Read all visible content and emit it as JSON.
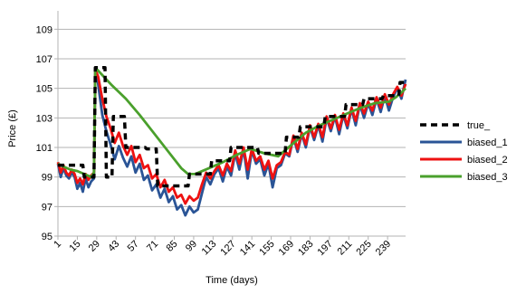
{
  "chart_data": {
    "type": "line",
    "xlabel": "Time (days)",
    "ylabel": "Price (£)",
    "ylim": [
      95,
      110
    ],
    "y_ticks": [
      95,
      97,
      99,
      101,
      103,
      105,
      107,
      109
    ],
    "x_range": [
      1,
      252
    ],
    "x_ticks": [
      1,
      15,
      29,
      43,
      57,
      71,
      85,
      99,
      113,
      127,
      141,
      155,
      169,
      183,
      197,
      211,
      225,
      239
    ],
    "grid": "horizontal",
    "legend": "right",
    "series": [
      {
        "name": "true_",
        "color": "#000000",
        "style": "dashed",
        "x": [
          1,
          19,
          20,
          27,
          28,
          35,
          36,
          40,
          41,
          49,
          50,
          64,
          65,
          72,
          73,
          95,
          96,
          111,
          112,
          125,
          126,
          145,
          146,
          165,
          166,
          175,
          176,
          193,
          194,
          208,
          209,
          221,
          222,
          235,
          236,
          247,
          248,
          252
        ],
        "values": [
          99.8,
          99.8,
          99.0,
          99.0,
          106.4,
          106.4,
          99.0,
          99.0,
          103.1,
          103.1,
          101.0,
          101.0,
          100.9,
          100.9,
          98.4,
          98.4,
          99.2,
          99.2,
          100.1,
          100.1,
          101.0,
          101.0,
          100.6,
          100.6,
          101.7,
          101.7,
          102.4,
          102.4,
          103.1,
          103.1,
          103.9,
          103.9,
          104.3,
          104.3,
          104.5,
          104.5,
          105.4,
          105.4
        ]
      },
      {
        "name": "biased_1",
        "color": "#2a5496",
        "style": "solid",
        "x": [
          1,
          3,
          5,
          7,
          9,
          11,
          13,
          15,
          17,
          19,
          21,
          23,
          25,
          27,
          28,
          30,
          33,
          36,
          39,
          42,
          45,
          48,
          51,
          54,
          57,
          60,
          63,
          66,
          69,
          72,
          75,
          78,
          81,
          84,
          87,
          90,
          93,
          96,
          99,
          102,
          105,
          108,
          111,
          114,
          117,
          120,
          123,
          126,
          129,
          132,
          135,
          138,
          141,
          144,
          147,
          150,
          153,
          156,
          159,
          162,
          165,
          168,
          171,
          174,
          177,
          180,
          183,
          186,
          189,
          192,
          195,
          198,
          201,
          204,
          207,
          210,
          213,
          216,
          219,
          222,
          225,
          228,
          231,
          234,
          237,
          240,
          243,
          246,
          249,
          252
        ],
        "values": [
          99.9,
          99.0,
          99.6,
          99.1,
          98.9,
          99.3,
          99.0,
          98.2,
          98.6,
          98.0,
          98.9,
          98.3,
          98.7,
          98.9,
          106.4,
          105.3,
          103.2,
          102.1,
          101.2,
          100.2,
          101.1,
          100.3,
          99.7,
          100.4,
          99.3,
          99.9,
          98.8,
          99.1,
          98.1,
          98.5,
          97.6,
          98.2,
          97.3,
          97.7,
          96.8,
          97.1,
          96.4,
          97.0,
          96.6,
          96.8,
          97.9,
          99.0,
          98.5,
          99.2,
          99.6,
          98.7,
          99.7,
          99.1,
          100.6,
          99.5,
          100.9,
          98.9,
          100.8,
          99.9,
          100.2,
          99.1,
          99.9,
          98.3,
          99.6,
          99.8,
          100.6,
          100.4,
          101.7,
          100.7,
          101.9,
          101.0,
          102.4,
          101.5,
          102.5,
          101.4,
          103.0,
          102.1,
          103.1,
          101.9,
          103.2,
          102.3,
          103.6,
          102.5,
          103.9,
          103.0,
          104.0,
          103.2,
          104.3,
          103.4,
          104.5,
          103.5,
          104.4,
          105.0,
          104.3,
          105.6
        ]
      },
      {
        "name": "biased_2",
        "color": "#ee1111",
        "style": "solid",
        "x": [
          1,
          3,
          5,
          7,
          9,
          11,
          13,
          15,
          17,
          19,
          21,
          23,
          25,
          27,
          28,
          30,
          33,
          36,
          39,
          42,
          45,
          48,
          51,
          54,
          57,
          60,
          63,
          66,
          69,
          72,
          75,
          78,
          81,
          84,
          87,
          90,
          93,
          96,
          99,
          102,
          105,
          108,
          111,
          114,
          117,
          120,
          123,
          126,
          129,
          132,
          135,
          138,
          141,
          144,
          147,
          150,
          153,
          156,
          159,
          162,
          165,
          168,
          171,
          174,
          177,
          180,
          183,
          186,
          189,
          192,
          195,
          198,
          201,
          204,
          207,
          210,
          213,
          216,
          219,
          222,
          225,
          228,
          231,
          234,
          237,
          240,
          243,
          246,
          249,
          252
        ],
        "values": [
          100.0,
          99.3,
          99.8,
          99.3,
          99.1,
          99.5,
          99.2,
          98.6,
          98.9,
          98.5,
          99.2,
          98.8,
          99.1,
          99.3,
          106.3,
          105.8,
          104.3,
          103.1,
          102.3,
          101.3,
          102.0,
          101.1,
          100.5,
          101.1,
          100.0,
          100.5,
          99.6,
          99.8,
          98.9,
          99.2,
          98.3,
          98.8,
          98.0,
          98.3,
          97.6,
          97.8,
          97.2,
          97.7,
          97.4,
          97.6,
          98.5,
          99.3,
          98.9,
          99.4,
          99.8,
          99.1,
          99.9,
          99.4,
          100.8,
          99.9,
          101.0,
          99.5,
          100.9,
          100.1,
          100.4,
          99.5,
          100.1,
          98.9,
          99.8,
          100.0,
          100.7,
          100.5,
          101.8,
          100.9,
          102.0,
          101.2,
          102.5,
          101.7,
          102.6,
          101.7,
          103.1,
          102.3,
          103.2,
          102.2,
          103.3,
          102.5,
          103.7,
          102.8,
          104.0,
          103.3,
          104.1,
          103.5,
          104.4,
          103.7,
          104.6,
          103.9,
          104.6,
          105.1,
          104.5,
          105.3
        ]
      },
      {
        "name": "biased_3",
        "color": "#4aa02c",
        "style": "solid",
        "x": [
          1,
          5,
          10,
          15,
          20,
          25,
          27,
          28,
          33,
          40,
          50,
          60,
          70,
          80,
          90,
          95,
          100,
          110,
          120,
          130,
          140,
          150,
          160,
          170,
          180,
          190,
          200,
          210,
          220,
          230,
          240,
          245,
          250,
          252
        ],
        "values": [
          99.9,
          99.7,
          99.5,
          99.4,
          99.2,
          99.0,
          99.3,
          106.4,
          105.9,
          105.2,
          104.3,
          103.2,
          102.0,
          100.8,
          99.6,
          99.2,
          99.2,
          99.6,
          100.0,
          100.5,
          100.9,
          100.6,
          100.4,
          101.2,
          102.0,
          102.5,
          102.9,
          103.3,
          103.7,
          104.0,
          104.1,
          104.4,
          104.8,
          105.0
        ]
      }
    ]
  }
}
